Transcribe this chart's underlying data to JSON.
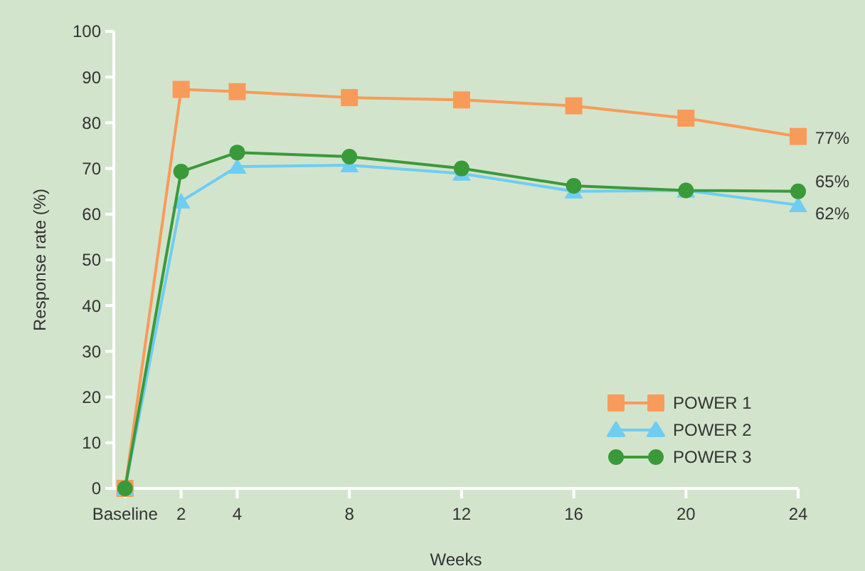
{
  "chart_data": {
    "type": "line",
    "xlabel": "Weeks",
    "ylabel": "Response rate (%)",
    "x": [
      0,
      2,
      4,
      8,
      12,
      16,
      20,
      24
    ],
    "xlim": [
      -0.4,
      24
    ],
    "xticks": [
      {
        "value": 0,
        "label": "Baseline"
      },
      2,
      4,
      8,
      12,
      16,
      20,
      24
    ],
    "ylim": [
      0,
      100
    ],
    "yticks": [
      0,
      10,
      20,
      30,
      40,
      50,
      60,
      70,
      80,
      90,
      100
    ],
    "grid": false,
    "legend": "bottom right",
    "line_style": "solid",
    "series": [
      {
        "name": "POWER 1",
        "color": "#f79b5b",
        "marker": "square",
        "values": [
          0,
          87.3,
          86.8,
          85.5,
          85,
          83.7,
          81,
          77
        ],
        "value_labels": [
          null,
          null,
          null,
          null,
          null,
          null,
          null,
          "77%"
        ]
      },
      {
        "name": "POWER 2",
        "color": "#6fcdf2",
        "marker": "triangle",
        "values": [
          0,
          62.8,
          70.4,
          70.7,
          68.9,
          65,
          65.2,
          62
        ],
        "value_labels": [
          null,
          null,
          null,
          null,
          null,
          null,
          null,
          "62%"
        ]
      },
      {
        "name": "POWER 3",
        "color": "#3a9a3a",
        "marker": "circle",
        "values": [
          0,
          69.3,
          73.5,
          72.6,
          70,
          66.2,
          65.2,
          65
        ],
        "value_labels": [
          null,
          null,
          null,
          null,
          null,
          null,
          null,
          "65%"
        ]
      }
    ]
  }
}
